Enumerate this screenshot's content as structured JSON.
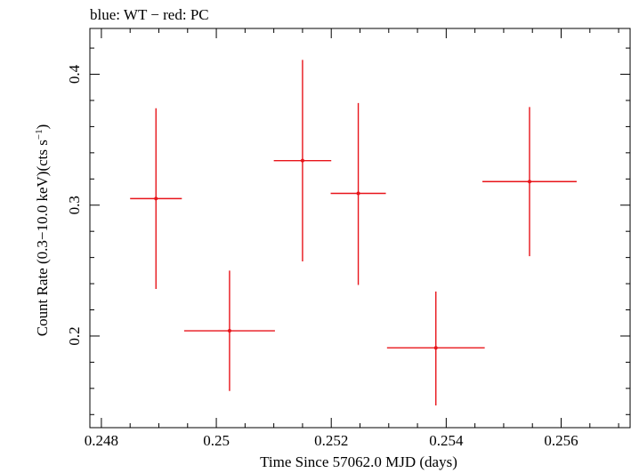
{
  "chart_data": {
    "type": "scatter",
    "title": "blue: WT − red: PC",
    "xlabel": "Time Since 57062.0 MJD (days)",
    "ylabel_main": "Count Rate (0.3−10.0 keV)(cts s",
    "ylabel_sup": "−1",
    "ylabel_close": ")",
    "xlim": [
      0.2478,
      0.2572
    ],
    "ylim": [
      0.13,
      0.435
    ],
    "xticks": [
      {
        "value": 0.248,
        "label": "0.248"
      },
      {
        "value": 0.25,
        "label": "0.25"
      },
      {
        "value": 0.252,
        "label": "0.252"
      },
      {
        "value": 0.254,
        "label": "0.254"
      },
      {
        "value": 0.256,
        "label": "0.256"
      }
    ],
    "yticks": [
      {
        "value": 0.2,
        "label": "0.2"
      },
      {
        "value": 0.3,
        "label": "0.3"
      },
      {
        "value": 0.4,
        "label": "0.4"
      }
    ],
    "x_minor_step": 0.0005,
    "y_minor_step": 0.02,
    "grid": false,
    "series": [
      {
        "name": "PC",
        "color": "#e8141a",
        "points": [
          {
            "x": 0.24895,
            "xerr": 0.00045,
            "y": 0.305,
            "yerr_lo": 0.069,
            "yerr_hi": 0.069
          },
          {
            "x": 0.25023,
            "xerr": 0.00079,
            "y": 0.204,
            "yerr_lo": 0.046,
            "yerr_hi": 0.046
          },
          {
            "x": 0.2515,
            "xerr": 0.0005,
            "y": 0.334,
            "yerr_lo": 0.077,
            "yerr_hi": 0.077
          },
          {
            "x": 0.25247,
            "xerr": 0.00048,
            "y": 0.309,
            "yerr_lo": 0.07,
            "yerr_hi": 0.069
          },
          {
            "x": 0.25382,
            "xerr": 0.00085,
            "y": 0.191,
            "yerr_lo": 0.044,
            "yerr_hi": 0.043
          },
          {
            "x": 0.25545,
            "xerr": 0.00082,
            "y": 0.318,
            "yerr_lo": 0.057,
            "yerr_hi": 0.057
          }
        ]
      }
    ]
  }
}
